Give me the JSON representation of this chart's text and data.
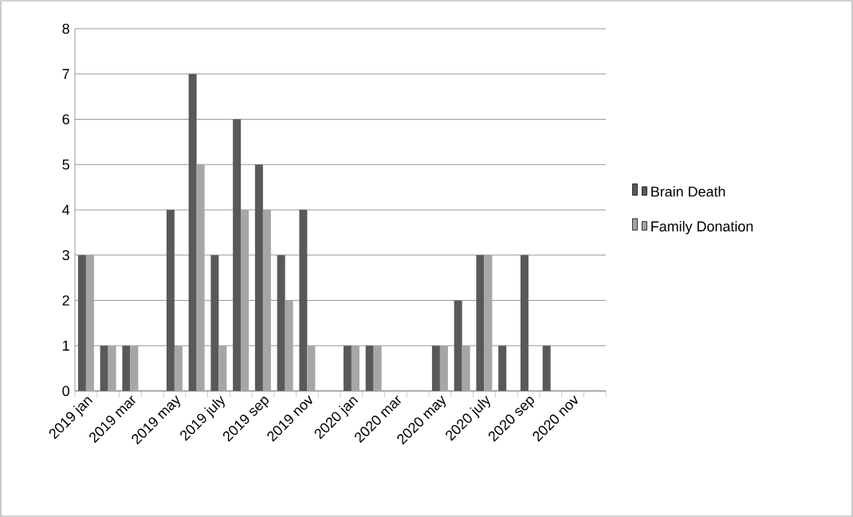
{
  "chart_data": {
    "type": "bar",
    "categories": [
      "2019 jan",
      null,
      "2019 mar",
      null,
      "2019 may",
      null,
      "2019 july",
      null,
      "2019 sep",
      null,
      "2019 nov",
      null,
      "2020 jan",
      null,
      "2020 mar",
      null,
      "2020 may",
      null,
      "2020 july",
      null,
      "2020 sep",
      null,
      "2020 nov",
      null
    ],
    "series": [
      {
        "name": "Brain Death",
        "color": "#595959",
        "values": [
          3,
          1,
          1,
          0,
          4,
          7,
          3,
          6,
          5,
          3,
          4,
          0,
          1,
          1,
          0,
          0,
          1,
          2,
          3,
          1,
          3,
          1,
          0,
          0
        ]
      },
      {
        "name": "Family Donation",
        "color": "#a6a6a6",
        "values": [
          3,
          1,
          1,
          0,
          1,
          5,
          1,
          4,
          4,
          2,
          1,
          0,
          1,
          1,
          0,
          0,
          1,
          1,
          3,
          0,
          0,
          0,
          0,
          0
        ]
      }
    ],
    "ylim": [
      0,
      8
    ],
    "yticks": [
      0,
      1,
      2,
      3,
      4,
      5,
      6,
      7,
      8
    ],
    "grid": "y",
    "legend": "right"
  }
}
